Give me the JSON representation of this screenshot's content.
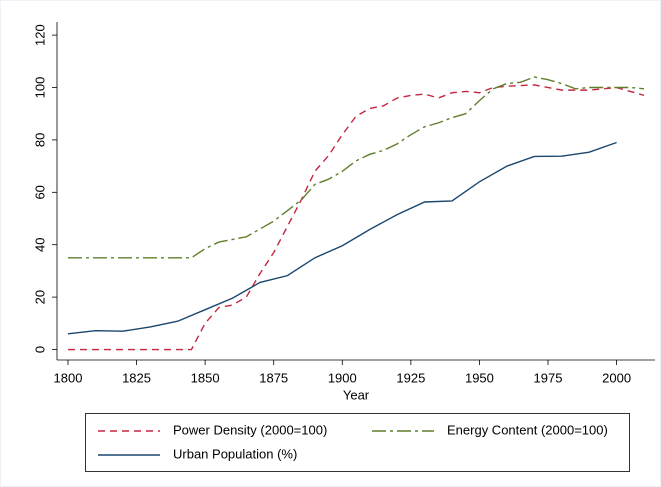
{
  "chart_data": {
    "type": "line",
    "x_label": "Year",
    "xlim": [
      1796,
      2014
    ],
    "xticks": [
      1800,
      1825,
      1850,
      1875,
      1900,
      1925,
      1950,
      1975,
      2000
    ],
    "ylim": [
      -4,
      125
    ],
    "yticks": [
      0,
      20,
      40,
      60,
      80,
      100,
      120
    ],
    "grid": false,
    "legend": "bottom",
    "series": [
      {
        "name": "Power Density (2000=100)",
        "color": "#c3263f",
        "dash": "7 5",
        "x": [
          1800,
          1805,
          1810,
          1815,
          1820,
          1825,
          1830,
          1835,
          1840,
          1845,
          1850,
          1855,
          1860,
          1865,
          1870,
          1875,
          1880,
          1885,
          1890,
          1895,
          1900,
          1905,
          1910,
          1915,
          1920,
          1925,
          1930,
          1935,
          1940,
          1945,
          1950,
          1955,
          1960,
          1970,
          1980,
          1990,
          2000,
          2010
        ],
        "values": [
          0,
          0,
          0,
          0,
          0,
          0,
          0,
          0,
          0,
          0,
          10,
          16,
          17,
          20,
          29,
          37,
          47,
          57,
          68,
          74,
          82,
          89,
          92,
          93,
          96,
          97,
          97.5,
          96,
          98,
          98.5,
          98,
          100,
          100.5,
          101,
          99,
          99,
          100,
          97
        ]
      },
      {
        "name": "Energy Content (2000=100)",
        "color": "#5f7f2b",
        "dash": "14 4 3 4",
        "x": [
          1800,
          1805,
          1810,
          1815,
          1820,
          1825,
          1830,
          1835,
          1840,
          1845,
          1850,
          1855,
          1860,
          1865,
          1870,
          1875,
          1880,
          1885,
          1890,
          1895,
          1900,
          1905,
          1910,
          1915,
          1920,
          1925,
          1930,
          1935,
          1940,
          1945,
          1950,
          1955,
          1960,
          1965,
          1970,
          1975,
          1980,
          1985,
          1990,
          1995,
          2000,
          2005,
          2010
        ],
        "values": [
          35,
          35,
          35,
          35,
          35,
          35,
          35,
          35,
          35,
          35,
          38.5,
          41,
          42,
          43,
          46,
          49,
          53,
          57,
          63,
          65,
          68,
          72,
          74.5,
          76,
          78.5,
          82,
          85,
          86.5,
          88.5,
          90,
          95,
          99.5,
          101.5,
          102,
          104,
          103,
          101.5,
          99.5,
          100,
          100,
          100,
          100,
          99.5
        ]
      },
      {
        "name": "Urban Population (%)",
        "color": "#1a476f",
        "dash": "",
        "x": [
          1800,
          1810,
          1820,
          1830,
          1840,
          1850,
          1860,
          1870,
          1880,
          1890,
          1900,
          1910,
          1920,
          1930,
          1940,
          1950,
          1960,
          1970,
          1980,
          1990,
          2000
        ],
        "values": [
          6,
          7.2,
          7,
          8.6,
          10.8,
          15.2,
          19.6,
          25.6,
          28.2,
          35,
          39.6,
          45.8,
          51.5,
          56.3,
          56.7,
          64,
          70,
          73.7,
          73.8,
          75.3,
          79
        ]
      }
    ]
  }
}
